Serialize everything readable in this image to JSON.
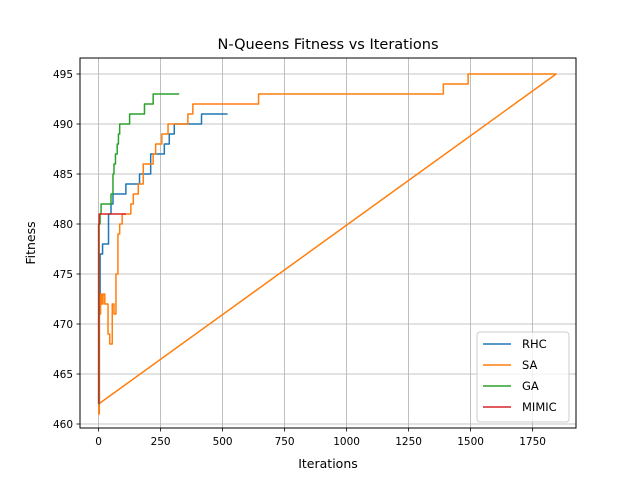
{
  "chart_data": {
    "type": "line",
    "title": "N-Queens Fitness vs Iterations",
    "xlabel": "Iterations",
    "ylabel": "Fitness",
    "xlim": [
      -75,
      1925
    ],
    "ylim": [
      459.6,
      496.6
    ],
    "xticks": [
      0,
      250,
      500,
      750,
      1000,
      1250,
      1500,
      1750
    ],
    "yticks": [
      460,
      465,
      470,
      475,
      480,
      485,
      490,
      495
    ],
    "grid": true,
    "legend_position": "bottom-right",
    "series": [
      {
        "name": "RHC",
        "color": "#1f77b4",
        "points": [
          [
            0,
            462
          ],
          [
            3,
            462
          ],
          [
            3,
            471
          ],
          [
            6,
            471
          ],
          [
            6,
            477
          ],
          [
            16,
            477
          ],
          [
            16,
            478
          ],
          [
            40,
            478
          ],
          [
            40,
            481
          ],
          [
            50,
            481
          ],
          [
            50,
            482
          ],
          [
            58,
            482
          ],
          [
            58,
            483
          ],
          [
            110,
            483
          ],
          [
            110,
            484
          ],
          [
            165,
            484
          ],
          [
            165,
            485
          ],
          [
            210,
            485
          ],
          [
            210,
            487
          ],
          [
            265,
            487
          ],
          [
            265,
            488
          ],
          [
            285,
            488
          ],
          [
            285,
            489
          ],
          [
            305,
            489
          ],
          [
            305,
            490
          ],
          [
            415,
            490
          ],
          [
            415,
            491
          ],
          [
            520,
            491
          ]
        ]
      },
      {
        "name": "SA",
        "color": "#ff7f0e",
        "points": [
          [
            0,
            462
          ],
          [
            1,
            462
          ],
          [
            1,
            461
          ],
          [
            3,
            461
          ],
          [
            3,
            471
          ],
          [
            8,
            471
          ],
          [
            8,
            473
          ],
          [
            12,
            473
          ],
          [
            12,
            472
          ],
          [
            18,
            472
          ],
          [
            18,
            473
          ],
          [
            25,
            473
          ],
          [
            25,
            472
          ],
          [
            38,
            472
          ],
          [
            38,
            469
          ],
          [
            45,
            469
          ],
          [
            45,
            468
          ],
          [
            55,
            468
          ],
          [
            55,
            472
          ],
          [
            62,
            472
          ],
          [
            62,
            471
          ],
          [
            70,
            471
          ],
          [
            70,
            475
          ],
          [
            78,
            475
          ],
          [
            78,
            479
          ],
          [
            85,
            479
          ],
          [
            85,
            480
          ],
          [
            95,
            480
          ],
          [
            95,
            481
          ],
          [
            130,
            481
          ],
          [
            130,
            482
          ],
          [
            140,
            482
          ],
          [
            140,
            483
          ],
          [
            160,
            483
          ],
          [
            160,
            484
          ],
          [
            180,
            484
          ],
          [
            180,
            486
          ],
          [
            220,
            486
          ],
          [
            220,
            487
          ],
          [
            230,
            487
          ],
          [
            230,
            488
          ],
          [
            255,
            488
          ],
          [
            255,
            489
          ],
          [
            280,
            489
          ],
          [
            280,
            490
          ],
          [
            360,
            490
          ],
          [
            360,
            491
          ],
          [
            380,
            491
          ],
          [
            380,
            492
          ],
          [
            645,
            492
          ],
          [
            645,
            493
          ],
          [
            1390,
            493
          ],
          [
            1390,
            494
          ],
          [
            1490,
            494
          ],
          [
            1490,
            495
          ],
          [
            1845,
            495
          ],
          [
            0,
            462
          ]
        ]
      },
      {
        "name": "GA",
        "color": "#2ca02c",
        "points": [
          [
            0,
            462
          ],
          [
            2,
            462
          ],
          [
            2,
            480
          ],
          [
            6,
            480
          ],
          [
            6,
            481
          ],
          [
            10,
            481
          ],
          [
            10,
            482
          ],
          [
            50,
            482
          ],
          [
            50,
            483
          ],
          [
            58,
            483
          ],
          [
            58,
            485
          ],
          [
            62,
            485
          ],
          [
            62,
            486
          ],
          [
            68,
            486
          ],
          [
            68,
            487
          ],
          [
            75,
            487
          ],
          [
            75,
            488
          ],
          [
            80,
            488
          ],
          [
            80,
            489
          ],
          [
            85,
            489
          ],
          [
            85,
            490
          ],
          [
            125,
            490
          ],
          [
            125,
            491
          ],
          [
            185,
            491
          ],
          [
            185,
            492
          ],
          [
            220,
            492
          ],
          [
            220,
            493
          ],
          [
            325,
            493
          ]
        ]
      },
      {
        "name": "MIMIC",
        "color": "#d62728",
        "points": [
          [
            0,
            462
          ],
          [
            0,
            480
          ],
          [
            2,
            480
          ],
          [
            2,
            481
          ],
          [
            110,
            481
          ]
        ]
      }
    ]
  }
}
